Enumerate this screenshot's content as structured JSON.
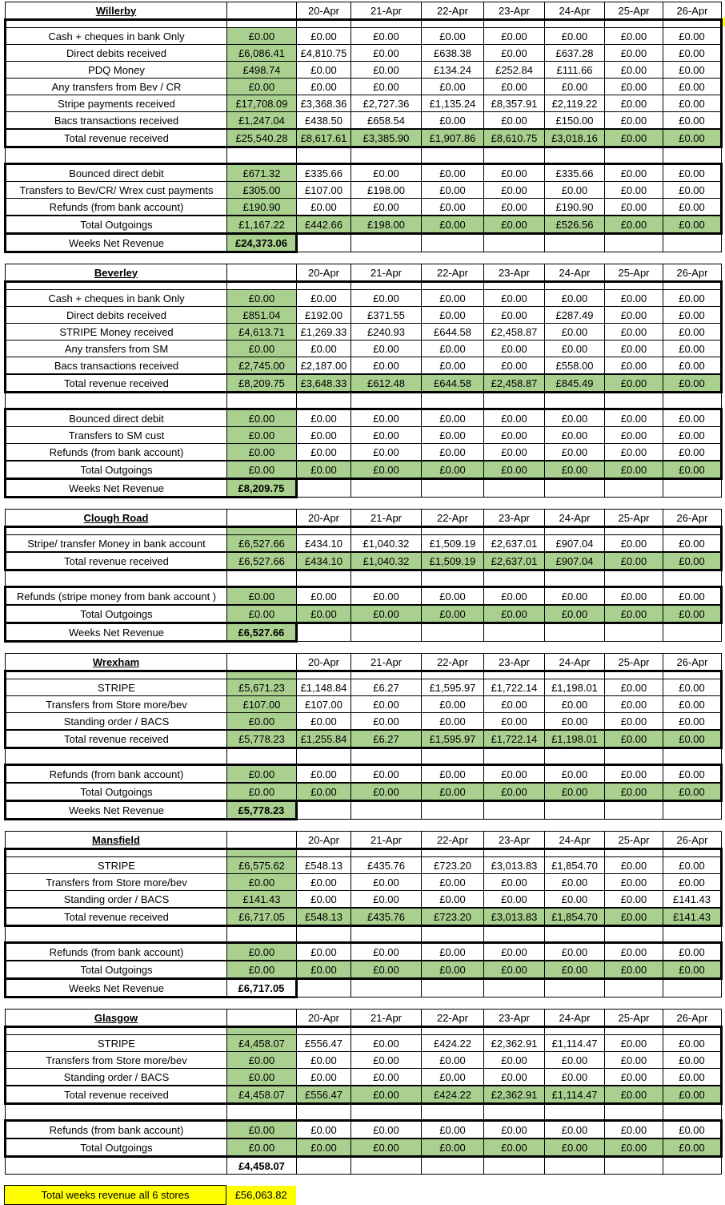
{
  "dates": [
    "20-Apr",
    "21-Apr",
    "22-Apr",
    "23-Apr",
    "24-Apr",
    "25-Apr",
    "26-Apr"
  ],
  "colors": {
    "highlight_green": "#A9D08E",
    "highlight_yellow": "#FFFF00",
    "grid": "#000000"
  },
  "footer": {
    "label": "Total weeks revenue all 6 stores",
    "value": "£56,063.82"
  },
  "stores": [
    {
      "name": "Willerby",
      "thin_week_green": false,
      "income_rows": [
        {
          "label": "Cash + cheques in bank Only",
          "week": "£0.00",
          "days": [
            "£0.00",
            "£0.00",
            "£0.00",
            "£0.00",
            "£0.00",
            "£0.00",
            "£0.00"
          ]
        },
        {
          "label": "Direct debits received",
          "week": "£6,086.41",
          "days": [
            "£4,810.75",
            "£0.00",
            "£638.38",
            "£0.00",
            "£637.28",
            "£0.00",
            "£0.00"
          ]
        },
        {
          "label": "PDQ Money",
          "week": "£498.74",
          "days": [
            "£0.00",
            "£0.00",
            "£134.24",
            "£252.84",
            "£111.66",
            "£0.00",
            "£0.00"
          ]
        },
        {
          "label": "Any transfers from Bev / CR",
          "week": "£0.00",
          "days": [
            "£0.00",
            "£0.00",
            "£0.00",
            "£0.00",
            "£0.00",
            "£0.00",
            "£0.00"
          ]
        },
        {
          "label": "Stripe payments received",
          "week": "£17,708.09",
          "days": [
            "£3,368.36",
            "£2,727.36",
            "£1,135.24",
            "£8,357.91",
            "£2,119.22",
            "£0.00",
            "£0.00"
          ]
        },
        {
          "label": "Bacs transactions received",
          "week": "£1,247.04",
          "days": [
            "£438.50",
            "£658.54",
            "£0.00",
            "£0.00",
            "£150.00",
            "£0.00",
            "£0.00"
          ]
        }
      ],
      "total_revenue": {
        "label": "Total revenue received",
        "week": "£25,540.28",
        "days": [
          "£8,617.61",
          "£3,385.90",
          "£1,907.86",
          "£8,610.75",
          "£3,018.16",
          "£0.00",
          "£0.00"
        ]
      },
      "outgoing_rows": [
        {
          "label": "Bounced direct debit",
          "week": "£671.32",
          "days": [
            "£335.66",
            "£0.00",
            "£0.00",
            "£0.00",
            "£335.66",
            "£0.00",
            "£0.00"
          ]
        },
        {
          "label": "Transfers to Bev/CR/ Wrex  cust payments",
          "week": "£305.00",
          "days": [
            "£107.00",
            "£198.00",
            "£0.00",
            "£0.00",
            "£0.00",
            "£0.00",
            "£0.00"
          ]
        },
        {
          "label": "Refunds (from bank account)",
          "week": "£190.90",
          "days": [
            "£0.00",
            "£0.00",
            "£0.00",
            "£0.00",
            "£190.90",
            "£0.00",
            "£0.00"
          ]
        }
      ],
      "total_outgoings": {
        "label": "Total Outgoings",
        "week": "£1,167.22",
        "days": [
          "£442.66",
          "£198.00",
          "£0.00",
          "£0.00",
          "£526.56",
          "£0.00",
          "£0.00"
        ]
      },
      "net": {
        "label": "Weeks Net Revenue",
        "value": "£24,373.06",
        "green": true,
        "right_stub": true
      }
    },
    {
      "name": "Beverley",
      "thin_week_green": false,
      "income_rows": [
        {
          "label": "Cash + cheques in bank Only",
          "week": "£0.00",
          "days": [
            "£0.00",
            "£0.00",
            "£0.00",
            "£0.00",
            "£0.00",
            "£0.00",
            "£0.00"
          ]
        },
        {
          "label": "Direct debits received",
          "week": "£851.04",
          "days": [
            "£192.00",
            "£371.55",
            "£0.00",
            "£0.00",
            "£287.49",
            "£0.00",
            "£0.00"
          ]
        },
        {
          "label": "STRIPE Money received",
          "week": "£4,613.71",
          "days": [
            "£1,269.33",
            "£240.93",
            "£644.58",
            "£2,458.87",
            "£0.00",
            "£0.00",
            "£0.00"
          ]
        },
        {
          "label": "Any transfers from SM",
          "week": "£0.00",
          "days": [
            "£0.00",
            "£0.00",
            "£0.00",
            "£0.00",
            "£0.00",
            "£0.00",
            "£0.00"
          ]
        },
        {
          "label": "Bacs transactions received",
          "week": "£2,745.00",
          "days": [
            "£2,187.00",
            "£0.00",
            "£0.00",
            "£0.00",
            "£558.00",
            "£0.00",
            "£0.00"
          ]
        }
      ],
      "total_revenue": {
        "label": "Total revenue received",
        "week": "£8,209.75",
        "days": [
          "£3,648.33",
          "£612.48",
          "£644.58",
          "£2,458.87",
          "£845.49",
          "£0.00",
          "£0.00"
        ]
      },
      "outgoing_rows": [
        {
          "label": "Bounced direct debit",
          "week": "£0.00",
          "days": [
            "£0.00",
            "£0.00",
            "£0.00",
            "£0.00",
            "£0.00",
            "£0.00",
            "£0.00"
          ]
        },
        {
          "label": "Transfers to SM cust",
          "week": "£0.00",
          "days": [
            "£0.00",
            "£0.00",
            "£0.00",
            "£0.00",
            "£0.00",
            "£0.00",
            "£0.00"
          ]
        },
        {
          "label": "Refunds (from bank account)",
          "week": "£0.00",
          "days": [
            "£0.00",
            "£0.00",
            "£0.00",
            "£0.00",
            "£0.00",
            "£0.00",
            "£0.00"
          ]
        }
      ],
      "total_outgoings": {
        "label": "Total Outgoings",
        "week": "£0.00",
        "days": [
          "£0.00",
          "£0.00",
          "£0.00",
          "£0.00",
          "£0.00",
          "£0.00",
          "£0.00"
        ]
      },
      "net": {
        "label": "Weeks Net Revenue",
        "value": "£8,209.75",
        "green": true,
        "right_stub": true
      }
    },
    {
      "name": "Clough Road",
      "thin_week_green": true,
      "income_rows": [
        {
          "label": "Stripe/ transfer Money  in bank account",
          "week": "£6,527.66",
          "days": [
            "£434.10",
            "£1,040.32",
            "£1,509.19",
            "£2,637.01",
            "£907.04",
            "£0.00",
            "£0.00"
          ]
        }
      ],
      "total_revenue": {
        "label": "Total revenue received",
        "week": "£6,527.66",
        "days": [
          "£434.10",
          "£1,040.32",
          "£1,509.19",
          "£2,637.01",
          "£907.04",
          "£0.00",
          "£0.00"
        ]
      },
      "outgoing_rows": [
        {
          "label": "Refunds (stripe money from bank account )",
          "week": "£0.00",
          "days": [
            "£0.00",
            "£0.00",
            "£0.00",
            "£0.00",
            "£0.00",
            "£0.00",
            "£0.00"
          ]
        }
      ],
      "total_outgoings": {
        "label": "Total Outgoings",
        "week": "£0.00",
        "days": [
          "£0.00",
          "£0.00",
          "£0.00",
          "£0.00",
          "£0.00",
          "£0.00",
          "£0.00"
        ]
      },
      "net": {
        "label": "Weeks Net Revenue",
        "value": "£6,527.66",
        "green": true,
        "right_stub": true
      }
    },
    {
      "name": "Wrexham",
      "thin_week_green": true,
      "income_rows": [
        {
          "label": "STRIPE",
          "week": "£5,671.23",
          "days": [
            "£1,148.84",
            "£6.27",
            "£1,595.97",
            "£1,722.14",
            "£1,198.01",
            "£0.00",
            "£0.00"
          ]
        },
        {
          "label": "Transfers from Store more/bev",
          "week": "£107.00",
          "days": [
            "£107.00",
            "£0.00",
            "£0.00",
            "£0.00",
            "£0.00",
            "£0.00",
            "£0.00"
          ]
        },
        {
          "label": "Standing order / BACS",
          "week": "£0.00",
          "days": [
            "£0.00",
            "£0.00",
            "£0.00",
            "£0.00",
            "£0.00",
            "£0.00",
            "£0.00"
          ]
        }
      ],
      "total_revenue": {
        "label": "Total revenue received",
        "week": "£5,778.23",
        "days": [
          "£1,255.84",
          "£6.27",
          "£1,595.97",
          "£1,722.14",
          "£1,198.01",
          "£0.00",
          "£0.00"
        ]
      },
      "outgoing_rows": [
        {
          "label": "Refunds (from bank account)",
          "week": "£0.00",
          "days": [
            "£0.00",
            "£0.00",
            "£0.00",
            "£0.00",
            "£0.00",
            "£0.00",
            "£0.00"
          ]
        }
      ],
      "total_outgoings": {
        "label": "Total Outgoings",
        "week": "£0.00",
        "days": [
          "£0.00",
          "£0.00",
          "£0.00",
          "£0.00",
          "£0.00",
          "£0.00",
          "£0.00"
        ]
      },
      "net": {
        "label": "Weeks Net Revenue",
        "value": "£5,778.23",
        "green": true,
        "right_stub": true
      }
    },
    {
      "name": "Mansfield",
      "thin_week_green": true,
      "income_rows": [
        {
          "label": "STRIPE",
          "week": "£6,575.62",
          "days": [
            "£548.13",
            "£435.76",
            "£723.20",
            "£3,013.83",
            "£1,854.70",
            "£0.00",
            "£0.00"
          ]
        },
        {
          "label": "Transfers from Store more/bev",
          "week": "£0.00",
          "days": [
            "£0.00",
            "£0.00",
            "£0.00",
            "£0.00",
            "£0.00",
            "£0.00",
            "£0.00"
          ]
        },
        {
          "label": "Standing order / BACS",
          "week": "£141.43",
          "days": [
            "£0.00",
            "£0.00",
            "£0.00",
            "£0.00",
            "£0.00",
            "£0.00",
            "£141.43"
          ]
        }
      ],
      "total_revenue": {
        "label": "Total revenue received",
        "week": "£6,717.05",
        "days": [
          "£548.13",
          "£435.76",
          "£723.20",
          "£3,013.83",
          "£1,854.70",
          "£0.00",
          "£141.43"
        ]
      },
      "outgoing_rows": [
        {
          "label": "Refunds (from bank account)",
          "week": "£0.00",
          "days": [
            "£0.00",
            "£0.00",
            "£0.00",
            "£0.00",
            "£0.00",
            "£0.00",
            "£0.00"
          ]
        }
      ],
      "total_outgoings": {
        "label": "Total Outgoings",
        "week": "£0.00",
        "days": [
          "£0.00",
          "£0.00",
          "£0.00",
          "£0.00",
          "£0.00",
          "£0.00",
          "£0.00"
        ]
      },
      "net": {
        "label": "Weeks Net Revenue",
        "value": "£6,717.05",
        "green": false,
        "right_stub": true
      }
    },
    {
      "name": "Glasgow",
      "thin_week_green": true,
      "income_rows": [
        {
          "label": "STRIPE",
          "week": "£4,458.07",
          "days": [
            "£556.47",
            "£0.00",
            "£424.22",
            "£2,362.91",
            "£1,114.47",
            "£0.00",
            "£0.00"
          ]
        },
        {
          "label": "Transfers from Store more/bev",
          "week": "£0.00",
          "days": [
            "£0.00",
            "£0.00",
            "£0.00",
            "£0.00",
            "£0.00",
            "£0.00",
            "£0.00"
          ]
        },
        {
          "label": "Standing order / BACS",
          "week": "£0.00",
          "days": [
            "£0.00",
            "£0.00",
            "£0.00",
            "£0.00",
            "£0.00",
            "£0.00",
            "£0.00"
          ]
        }
      ],
      "total_revenue": {
        "label": "Total revenue received",
        "week": "£4,458.07",
        "days": [
          "£556.47",
          "£0.00",
          "£424.22",
          "£2,362.91",
          "£1,114.47",
          "£0.00",
          "£0.00"
        ]
      },
      "outgoing_rows": [
        {
          "label": "Refunds (from bank account)",
          "week": "£0.00",
          "days": [
            "£0.00",
            "£0.00",
            "£0.00",
            "£0.00",
            "£0.00",
            "£0.00",
            "£0.00"
          ]
        }
      ],
      "total_outgoings": {
        "label": "Total Outgoings",
        "week": "£0.00",
        "days": [
          "£0.00",
          "£0.00",
          "£0.00",
          "£0.00",
          "£0.00",
          "£0.00",
          "£0.00"
        ]
      },
      "net": {
        "label": "",
        "value": "£4,458.07",
        "green": false,
        "right_stub": false
      }
    }
  ]
}
